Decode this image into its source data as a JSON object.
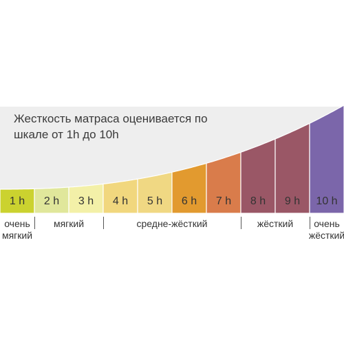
{
  "description": {
    "line1": "Жесткость матраса оценивается по",
    "line2": "шкале от 1h до 10h"
  },
  "scale": {
    "cells": [
      {
        "label": "1 h",
        "value": 1,
        "color": "#cbd22f"
      },
      {
        "label": "2 h",
        "value": 2,
        "color": "#e0e79b"
      },
      {
        "label": "3 h",
        "value": 3,
        "color": "#f3f0a8"
      },
      {
        "label": "4 h",
        "value": 4,
        "color": "#f1d77e"
      },
      {
        "label": "5 h",
        "value": 5,
        "color": "#f0d883"
      },
      {
        "label": "6 h",
        "value": 6,
        "color": "#e29a2f"
      },
      {
        "label": "7 h",
        "value": 7,
        "color": "#d97c4b"
      },
      {
        "label": "8 h",
        "value": 8,
        "color": "#9a5766"
      },
      {
        "label": "9 h",
        "value": 9,
        "color": "#9a5766"
      },
      {
        "label": "10 h",
        "value": 10,
        "color": "#7b66aa"
      }
    ],
    "categories": [
      {
        "lines": [
          "очень",
          "мягкий"
        ],
        "from": 1,
        "to": 1
      },
      {
        "lines": [
          "мягкий"
        ],
        "from": 2,
        "to": 3
      },
      {
        "lines": [
          "средне-жёсткий"
        ],
        "from": 4,
        "to": 7
      },
      {
        "lines": [
          "жёсткий"
        ],
        "from": 8,
        "to": 9
      },
      {
        "lines": [
          "очень",
          "жёсткий"
        ],
        "from": 10,
        "to": 10
      }
    ]
  },
  "colors": {
    "background_band": "#eeeeee",
    "text": "#333333",
    "separator": "#555555"
  }
}
